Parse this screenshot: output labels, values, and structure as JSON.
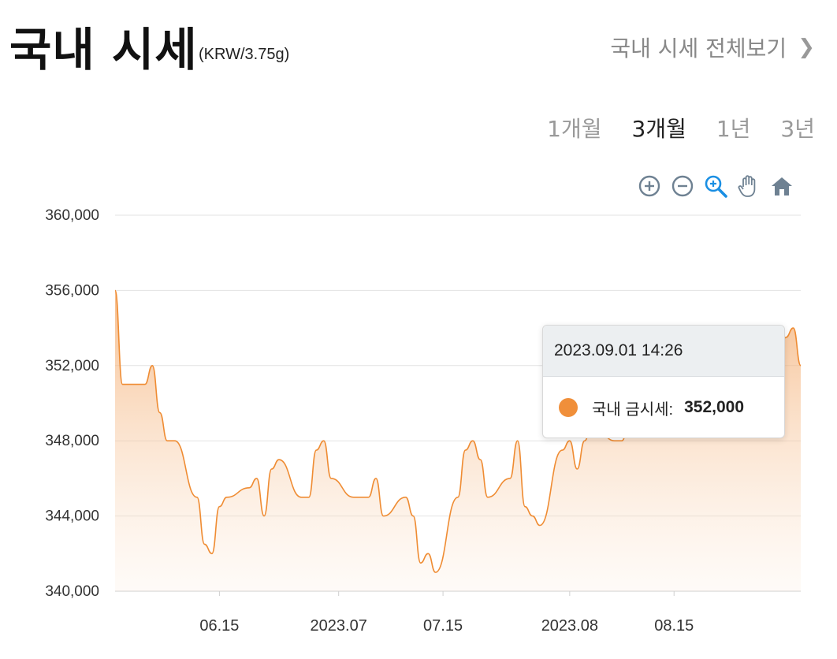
{
  "header": {
    "title": "국내 시세",
    "unit": "(KRW/3.75g)",
    "view_all": "국내 시세 전체보기",
    "view_all_icon": "chevron-right-icon"
  },
  "ranges": [
    {
      "label": "1개월",
      "active": false
    },
    {
      "label": "3개월",
      "active": true
    },
    {
      "label": "1년",
      "active": false
    },
    {
      "label": "3년",
      "active": false
    }
  ],
  "toolbar": [
    "zoom-in-icon",
    "zoom-out-icon",
    "selection-zoom-icon",
    "pan-hand-icon",
    "reset-home-icon"
  ],
  "tooltip": {
    "date": "2023.09.01 14:26",
    "series_label": "국내 금시세:",
    "value": "352,000"
  },
  "chart_data": {
    "type": "area",
    "series": [
      {
        "name": "국내 금시세",
        "color": "#f08f3a"
      }
    ],
    "ylim": [
      340000,
      360000
    ],
    "yticks": [
      360000,
      356000,
      352000,
      348000,
      344000,
      340000
    ],
    "ytick_labels": [
      "360,000",
      "356,000",
      "352,000",
      "348,000",
      "344,000",
      "340,000"
    ],
    "x_dates": [
      "2023-06-01",
      "2023-06-02",
      "2023-06-05",
      "2023-06-06",
      "2023-06-07",
      "2023-06-08",
      "2023-06-09",
      "2023-06-12",
      "2023-06-13",
      "2023-06-14",
      "2023-06-15",
      "2023-06-16",
      "2023-06-19",
      "2023-06-20",
      "2023-06-21",
      "2023-06-22",
      "2023-06-23",
      "2023-06-26",
      "2023-06-27",
      "2023-06-28",
      "2023-06-29",
      "2023-06-30",
      "2023-07-03",
      "2023-07-04",
      "2023-07-05",
      "2023-07-06",
      "2023-07-07",
      "2023-07-10",
      "2023-07-11",
      "2023-07-12",
      "2023-07-13",
      "2023-07-14",
      "2023-07-17",
      "2023-07-18",
      "2023-07-19",
      "2023-07-20",
      "2023-07-21",
      "2023-07-24",
      "2023-07-25",
      "2023-07-26",
      "2023-07-27",
      "2023-07-28",
      "2023-07-31",
      "2023-08-01",
      "2023-08-02",
      "2023-08-03",
      "2023-08-04",
      "2023-08-07",
      "2023-08-08",
      "2023-08-09",
      "2023-08-10",
      "2023-08-11",
      "2023-08-14",
      "2023-08-15",
      "2023-08-16",
      "2023-08-17",
      "2023-08-18",
      "2023-08-21",
      "2023-08-22",
      "2023-08-23",
      "2023-08-24",
      "2023-08-25",
      "2023-08-28",
      "2023-08-29",
      "2023-08-30",
      "2023-08-31",
      "2023-09-01"
    ],
    "values": [
      356000,
      351000,
      351000,
      352000,
      349500,
      348000,
      348000,
      345000,
      342500,
      342000,
      344500,
      345000,
      345500,
      346000,
      344000,
      346500,
      347000,
      345000,
      345000,
      347500,
      348000,
      346000,
      345000,
      345000,
      345000,
      346000,
      344000,
      345000,
      344000,
      341500,
      342000,
      341000,
      345000,
      347500,
      348000,
      347000,
      345000,
      346000,
      348000,
      344500,
      344000,
      343500,
      347500,
      348000,
      346500,
      348000,
      349000,
      348000,
      348000,
      349000,
      349000,
      349500,
      350000,
      350000,
      350000,
      350500,
      351000,
      351000,
      351000,
      351000,
      351500,
      352000,
      351000,
      352500,
      353500,
      354000,
      352000
    ],
    "x_tick_dates": [
      "2023-06-15",
      "2023-07-01",
      "2023-07-15",
      "2023-08-01",
      "2023-08-15"
    ],
    "x_tick_labels": [
      "06.15",
      "2023.07",
      "07.15",
      "2023.08",
      "08.15"
    ],
    "grid": true
  }
}
